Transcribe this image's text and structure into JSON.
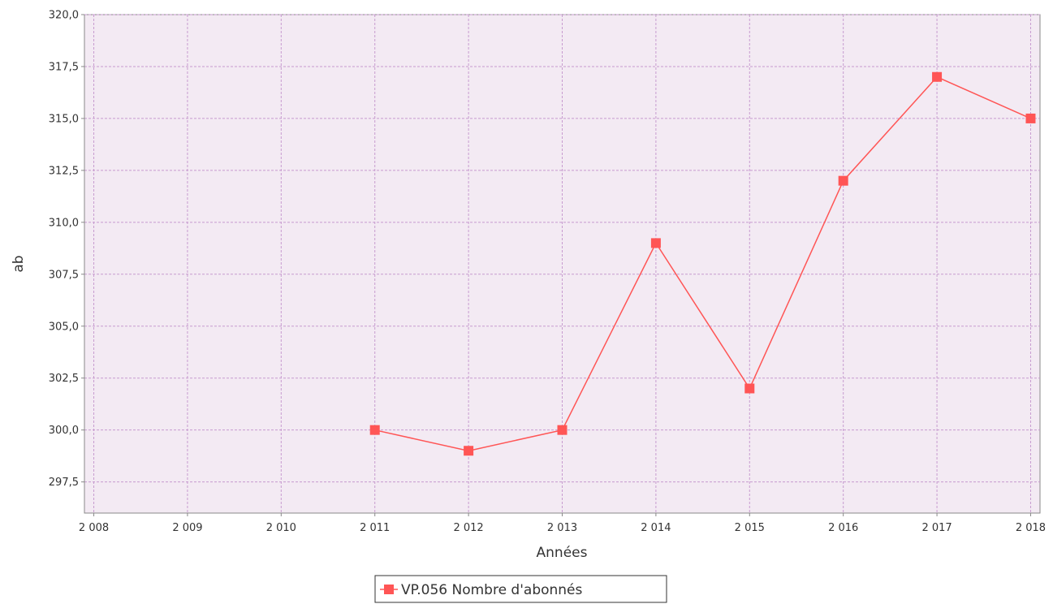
{
  "chart_data": {
    "type": "line",
    "xlabel": "Années",
    "ylabel": "ab",
    "x_ticks": [
      "2 008",
      "2 009",
      "2 010",
      "2 011",
      "2 012",
      "2 013",
      "2 014",
      "2 015",
      "2 016",
      "2 017",
      "2 018"
    ],
    "y_ticks": [
      "297,5",
      "300,0",
      "302,5",
      "305,0",
      "307,5",
      "310,0",
      "312,5",
      "315,0",
      "317,5",
      "320,0"
    ],
    "xlim": [
      2007.9,
      2018.1
    ],
    "ylim": [
      296,
      320
    ],
    "grid": true,
    "legend_position": "bottom-center",
    "series": [
      {
        "name": "VP.056 Nombre d'abonnés",
        "color": "#ff5555",
        "x": [
          2011,
          2012,
          2013,
          2014,
          2015,
          2016,
          2017,
          2018
        ],
        "y": [
          300,
          299,
          300,
          309,
          302,
          312,
          317,
          315
        ]
      }
    ]
  }
}
